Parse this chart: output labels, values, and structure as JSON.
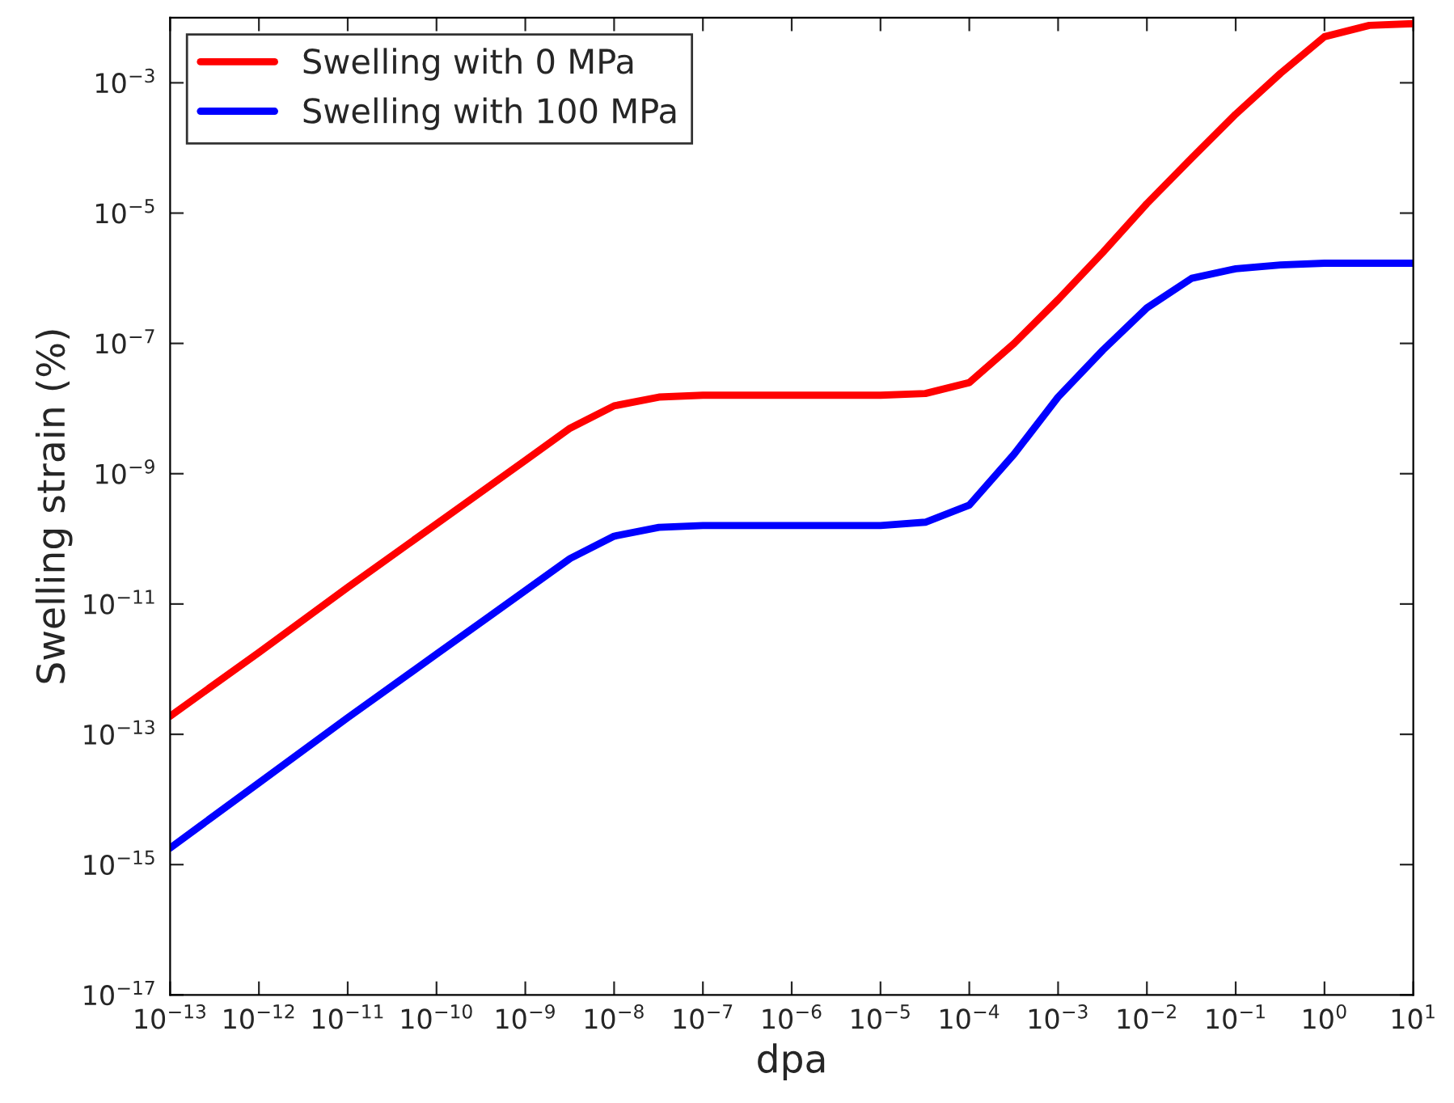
{
  "chart_data": {
    "type": "line",
    "xlabel": "dpa",
    "ylabel": "Swelling strain (%)",
    "log": "xy",
    "grid": false,
    "legend": "top left",
    "line_style": "solid",
    "marker": "none",
    "xlim": [
      1e-13,
      10
    ],
    "ylim": [
      1e-17,
      0.01
    ],
    "xticks": [
      {
        "value": 1e-13,
        "label": "10$^{−13}$"
      },
      {
        "value": 1e-12,
        "label": "10$^{−12}$"
      },
      {
        "value": 1e-11,
        "label": "10$^{−11}$"
      },
      {
        "value": 1e-10,
        "label": "10$^{−10}$"
      },
      {
        "value": 1e-09,
        "label": "10$^{−9}$"
      },
      {
        "value": 1e-08,
        "label": "10$^{−8}$"
      },
      {
        "value": 1e-07,
        "label": "10$^{−7}$"
      },
      {
        "value": 1e-06,
        "label": "10$^{−6}$"
      },
      {
        "value": 1e-05,
        "label": "10$^{−5}$"
      },
      {
        "value": 0.0001,
        "label": "10$^{−4}$"
      },
      {
        "value": 0.001,
        "label": "10$^{−3}$"
      },
      {
        "value": 0.01,
        "label": "10$^{−2}$"
      },
      {
        "value": 0.1,
        "label": "10$^{−1}$"
      },
      {
        "value": 1,
        "label": "10$^{0}$"
      },
      {
        "value": 10,
        "label": "10$^{1}$"
      }
    ],
    "yticks": [
      {
        "value": 1e-17,
        "label": "10$^{−17}$"
      },
      {
        "value": 1e-15,
        "label": "10$^{−15}$"
      },
      {
        "value": 1e-13,
        "label": "10$^{−13}$"
      },
      {
        "value": 1e-11,
        "label": "10$^{−11}$"
      },
      {
        "value": 1e-09,
        "label": "10$^{−9}$"
      },
      {
        "value": 1e-07,
        "label": "10$^{−7}$"
      },
      {
        "value": 1e-05,
        "label": "10$^{−5}$"
      },
      {
        "value": 0.001,
        "label": "10$^{−3}$"
      }
    ],
    "x": [
      1e-13,
      1e-12,
      1e-11,
      1e-10,
      1e-09,
      3.2e-09,
      1e-08,
      3.2e-08,
      1e-07,
      1e-06,
      1e-05,
      3.2e-05,
      0.0001,
      0.00032,
      0.001,
      0.0032,
      0.01,
      0.032,
      0.1,
      0.32,
      1,
      3.2,
      10
    ],
    "series": [
      {
        "name": "Swelling with 0 MPa",
        "color": "#ff0000",
        "values": [
          1.9e-13,
          1.8e-12,
          1.8e-11,
          1.7e-10,
          1.6e-09,
          5e-09,
          1.1e-08,
          1.5e-08,
          1.6e-08,
          1.6e-08,
          1.6e-08,
          1.7e-08,
          2.5e-08,
          1e-07,
          4.7e-07,
          2.5e-06,
          1.4e-05,
          7e-05,
          0.00033,
          0.0014,
          0.0051,
          0.0076,
          0.0081
        ]
      },
      {
        "name": "Swelling with 100 MPa",
        "color": "#0000ff",
        "values": [
          1.8e-15,
          1.8e-14,
          1.8e-13,
          1.7e-12,
          1.6e-11,
          5e-11,
          1.1e-10,
          1.5e-10,
          1.6e-10,
          1.6e-10,
          1.6e-10,
          1.8e-10,
          3.3e-10,
          2e-09,
          1.5e-08,
          7.9e-08,
          3.5e-07,
          1e-06,
          1.4e-06,
          1.6e-06,
          1.7e-06,
          1.7e-06,
          1.7e-06
        ]
      }
    ]
  }
}
